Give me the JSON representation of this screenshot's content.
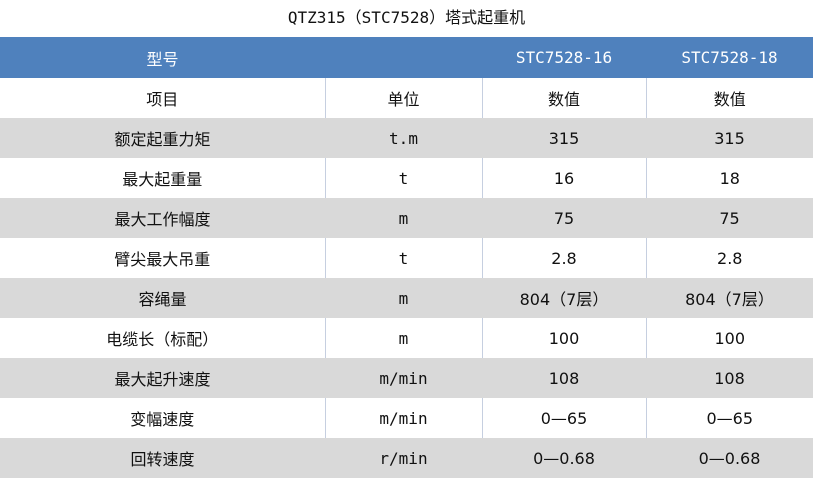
{
  "title": "QTZ315（STC7528）塔式起重机",
  "header": [
    "型号",
    "",
    "STC7528-16",
    "STC7528-18"
  ],
  "rows": [
    [
      "项目",
      "单位",
      "数值",
      "数值"
    ],
    [
      "额定起重力矩",
      "t.m",
      "315",
      "315"
    ],
    [
      "最大起重量",
      "t",
      "16",
      "18"
    ],
    [
      "最大工作幅度",
      "m",
      "75",
      "75"
    ],
    [
      "臂尖最大吊重",
      "t",
      "2.8",
      "2.8"
    ],
    [
      "容绳量",
      "m",
      "804（7层）",
      "804（7层）"
    ],
    [
      "电缆长（标配）",
      "m",
      "100",
      "100"
    ],
    [
      "最大起升速度",
      "m/min",
      "108",
      "108"
    ],
    [
      "变幅速度",
      "m/min",
      "0—65",
      "0—65"
    ],
    [
      "回转速度",
      "r/min",
      "0—0.68",
      "0—0.68"
    ]
  ],
  "colors": {
    "header": "#4f81bd",
    "stripe": "#d9d9d9"
  }
}
